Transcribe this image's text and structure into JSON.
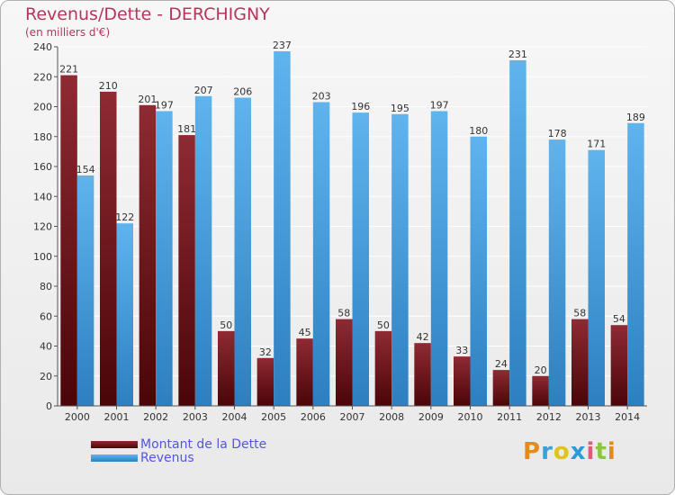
{
  "chart_data": {
    "type": "bar",
    "title": "Revenus/Dette - DERCHIGNY",
    "subtitle": "(en milliers d'€)",
    "categories": [
      "2000",
      "2001",
      "2002",
      "2003",
      "2004",
      "2005",
      "2006",
      "2007",
      "2008",
      "2009",
      "2010",
      "2011",
      "2012",
      "2013",
      "2014"
    ],
    "series": [
      {
        "name": "Montant de la Dette",
        "values": [
          221,
          210,
          201,
          181,
          50,
          32,
          45,
          58,
          50,
          42,
          33,
          24,
          20,
          58,
          54
        ],
        "color": "#7a1a22"
      },
      {
        "name": "Revenus",
        "values": [
          154,
          122,
          197,
          207,
          206,
          237,
          203,
          196,
          195,
          197,
          180,
          231,
          178,
          171,
          189
        ],
        "color": "#4fa3e0"
      }
    ],
    "ylim": [
      0,
      240
    ],
    "yticks": [
      0,
      20,
      40,
      60,
      80,
      100,
      120,
      140,
      160,
      180,
      200,
      220,
      240
    ],
    "grid": true,
    "legend": "bottom-left"
  },
  "logo": {
    "letters": [
      "P",
      "r",
      "o",
      "x",
      "i",
      "t",
      "i"
    ],
    "colors": [
      "#e58a1f",
      "#3aa0d8",
      "#e0c21f",
      "#2a9bd6",
      "#e05a7a",
      "#8cc63f",
      "#e58a1f"
    ]
  }
}
